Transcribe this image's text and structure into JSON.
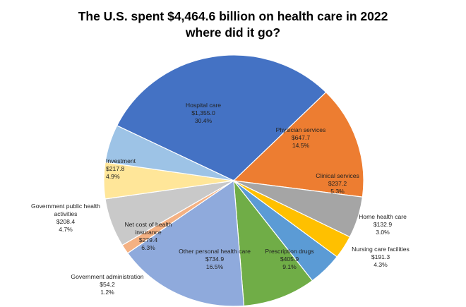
{
  "chart_data": {
    "type": "pie",
    "title_line1": "The U.S. spent $4,464.6 billion on health care in 2022",
    "title_line2": "where did it go?",
    "units": "billion USD",
    "total": 4464.6,
    "slices": [
      {
        "name": "Hospital care",
        "value_label": "$1,355.0",
        "percent_label": "30.4%",
        "value": 1355.0,
        "percent": 30.4,
        "color": "#4472C4"
      },
      {
        "name": "Physician services",
        "value_label": "$647.7",
        "percent_label": "14.5%",
        "value": 647.7,
        "percent": 14.5,
        "color": "#ED7D31"
      },
      {
        "name": "Clinical services",
        "value_label": "$237.2",
        "percent_label": "5.3%",
        "value": 237.2,
        "percent": 5.3,
        "color": "#A5A5A5"
      },
      {
        "name": "Home health care",
        "value_label": "$132.9",
        "percent_label": "3.0%",
        "value": 132.9,
        "percent": 3.0,
        "color": "#FFC000"
      },
      {
        "name": "Nursing care facilities",
        "value_label": "$191.3",
        "percent_label": "4.3%",
        "value": 191.3,
        "percent": 4.3,
        "color": "#5B9BD5"
      },
      {
        "name": "Prescription drugs",
        "value_label": "$405.9",
        "percent_label": "9.1%",
        "value": 405.9,
        "percent": 9.1,
        "color": "#70AD47"
      },
      {
        "name": "Other personal health care",
        "value_label": "$734.9",
        "percent_label": "16.5%",
        "value": 734.9,
        "percent": 16.5,
        "color": "#8FAADC"
      },
      {
        "name": "Government administration",
        "value_label": "$54.2",
        "percent_label": "1.2%",
        "value": 54.2,
        "percent": 1.2,
        "color": "#F4B183"
      },
      {
        "name": "Net cost of health insurance",
        "value_label": "$279.4",
        "percent_label": "6.3%",
        "value": 279.4,
        "percent": 6.3,
        "color": "#C9C9C9"
      },
      {
        "name": "Government public health activities",
        "value_label": "$208.4",
        "percent_label": "4.7%",
        "value": 208.4,
        "percent": 4.7,
        "color": "#FFE699"
      },
      {
        "name": "Investment",
        "value_label": "$217.8",
        "percent_label": "4.9%",
        "value": 217.8,
        "percent": 4.9,
        "color": "#9DC3E6"
      }
    ]
  }
}
